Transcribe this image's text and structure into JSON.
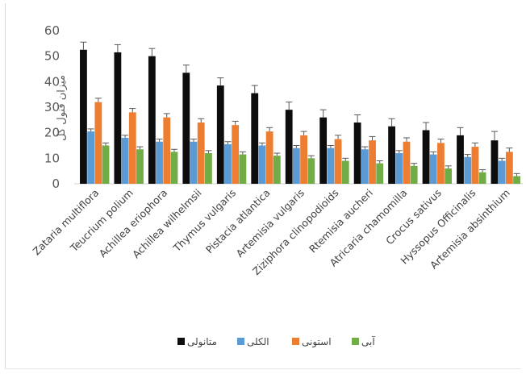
{
  "chart_data": {
    "type": "bar",
    "ylabel": "میزان فنول کل",
    "ylim": [
      0,
      60
    ],
    "yticks": [
      0,
      10,
      20,
      30,
      40,
      50,
      60
    ],
    "grid": false,
    "error_bars": true,
    "legend_position": "bottom",
    "categories": [
      "Zataria multiflora",
      "Teucrium polium",
      "Achillea eriophora",
      "Achillea wilhelmsii",
      "Thymus vulgaris",
      "Pistacia atlantica",
      "Artemisia vulgaris",
      "Ziziphora clinopodioids",
      "Rtemisia aucheri",
      "Atricaria chamomilla",
      "Crocus sativus",
      "Hyssopus Officinalis",
      "Artemisia absinthium"
    ],
    "series": [
      {
        "name": "متانولی",
        "color": "#0d0d0d",
        "values": [
          52.5,
          51.5,
          50,
          43.5,
          38.5,
          35.5,
          29,
          26,
          24,
          22.5,
          21,
          19,
          17
        ],
        "errors": [
          3,
          3,
          3,
          3,
          3,
          3,
          3,
          3,
          3,
          3,
          3,
          3,
          3.5
        ]
      },
      {
        "name": "الکلی",
        "color": "#5b9bd5",
        "values": [
          20.5,
          18,
          16.5,
          16.5,
          15.5,
          15,
          14,
          14,
          13.5,
          12,
          11.5,
          10.5,
          9
        ],
        "errors": [
          1,
          1,
          1,
          1,
          1,
          1,
          1,
          1,
          1,
          1,
          1,
          1,
          1
        ]
      },
      {
        "name": "استونی",
        "color": "#ed7d31",
        "values": [
          32,
          28,
          26,
          24,
          23,
          20.5,
          19,
          17.5,
          17,
          16.5,
          16,
          14.5,
          12.5
        ],
        "errors": [
          1.5,
          1.5,
          1.5,
          1.5,
          1.5,
          1.5,
          1.5,
          1.5,
          1.5,
          1.5,
          1.5,
          1.5,
          1.5
        ]
      },
      {
        "name": "آبی",
        "color": "#70ad47",
        "values": [
          15,
          13.5,
          12.5,
          12,
          11.5,
          11,
          10,
          9,
          8,
          7,
          6,
          4.5,
          3
        ],
        "errors": [
          1,
          1,
          1,
          1,
          1,
          1,
          1,
          1,
          1,
          1,
          1,
          1,
          1
        ]
      }
    ]
  }
}
